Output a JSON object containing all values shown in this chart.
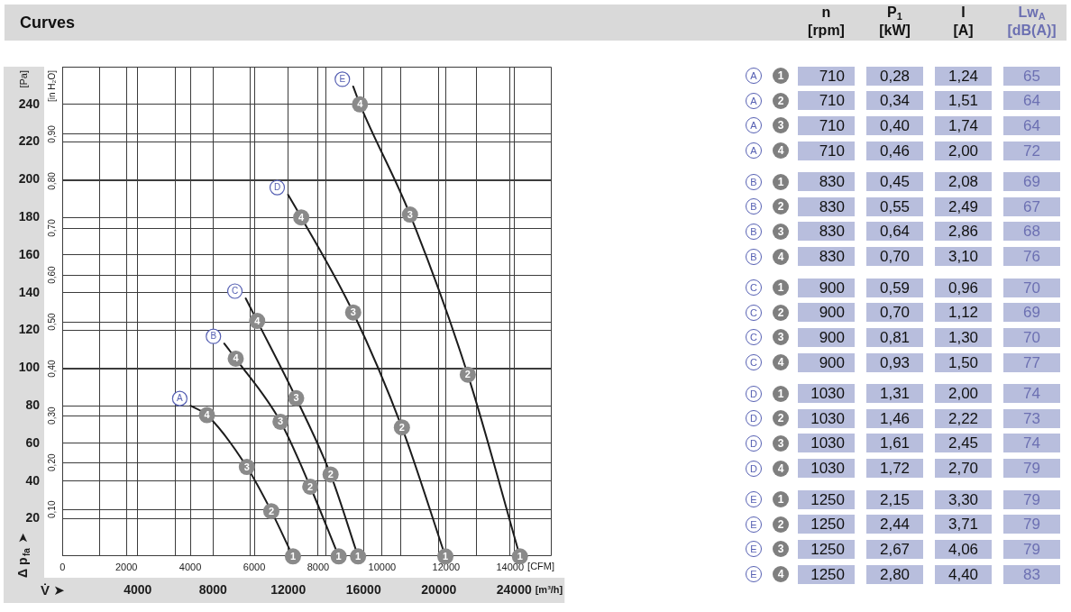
{
  "chart_data": [
    {
      "type": "line",
      "title": "Curves",
      "xlabel": "[m³/h]",
      "x2label": "[CFM]",
      "ylabel": "[Pa]",
      "y2label": "[in H₂O]",
      "xlim": [
        0,
        26000
      ],
      "xticks": [
        {
          "value": 2000,
          "label": null
        },
        4000,
        {
          "value": 6000,
          "label": null
        },
        8000,
        {
          "value": 10000,
          "label": null
        },
        12000,
        {
          "value": 14000,
          "label": null
        },
        16000,
        {
          "value": 18000,
          "label": null
        },
        20000,
        {
          "value": 22000,
          "label": null
        },
        24000
      ],
      "x2lim": [
        0,
        15303
      ],
      "x2ticks": [
        0,
        2000,
        4000,
        6000,
        8000,
        10000,
        12000,
        14000
      ],
      "ylim": [
        0,
        260
      ],
      "yticks": [
        20,
        40,
        60,
        80,
        100,
        120,
        140,
        160,
        180,
        200,
        220,
        240
      ],
      "y2lim": [
        0,
        1.044
      ],
      "y2ticks": [
        {
          "value": 0.1,
          "label": "0,10"
        },
        {
          "value": 0.2,
          "label": "0,20"
        },
        {
          "value": 0.3,
          "label": "0,30"
        },
        {
          "value": 0.4,
          "label": "0,40"
        },
        {
          "value": 0.5,
          "label": "0,50"
        },
        {
          "value": 0.6,
          "label": "0,60"
        },
        {
          "value": 0.7,
          "label": "0,70"
        },
        {
          "value": 0.8,
          "label": "0,80"
        },
        {
          "value": 0.9,
          "label": "0,90"
        }
      ],
      "grid": true,
      "line_style": "solid",
      "marker": "circle",
      "series": [
        {
          "name": "A",
          "color": "#1c1c1c",
          "x": [
            6810,
            7680,
            9800,
            11100,
            12250
          ],
          "values": [
            80,
            75,
            47.5,
            24,
            0
          ]
        },
        {
          "name": "B",
          "color": "#1c1c1c",
          "x": [
            8600,
            9210,
            11590,
            13170,
            14680
          ],
          "values": [
            113,
            105,
            71.5,
            37,
            0
          ]
        },
        {
          "name": "C",
          "color": "#1c1c1c",
          "x": [
            9740,
            10350,
            12420,
            14250,
            15710
          ],
          "values": [
            137,
            125,
            84,
            43.5,
            0
          ]
        },
        {
          "name": "D",
          "color": "#1c1c1c",
          "x": [
            11990,
            12690,
            15450,
            18040,
            20350
          ],
          "values": [
            192,
            180,
            129.5,
            68.5,
            0
          ]
        },
        {
          "name": "E",
          "color": "#1c1c1c",
          "x": [
            15450,
            15810,
            18470,
            21540,
            24310
          ],
          "values": [
            249.5,
            240,
            181.5,
            96.5,
            0
          ]
        }
      ],
      "annotations": [
        "Δ p$_{fa}$ ➤",
        "V̇ ➤",
        {
          "text": "4",
          "x": 7680,
          "y": 75
        },
        {
          "text": "3",
          "x": 9800,
          "y": 47.5
        },
        {
          "text": "2",
          "x": 11100,
          "y": 24
        },
        {
          "text": "1",
          "x": 12250,
          "y": 0
        },
        {
          "text": "4",
          "x": 9210,
          "y": 105
        },
        {
          "text": "3",
          "x": 11590,
          "y": 71.5
        },
        {
          "text": "2",
          "x": 13170,
          "y": 37
        },
        {
          "text": "1",
          "x": 14680,
          "y": 0
        },
        {
          "text": "4",
          "x": 10350,
          "y": 125
        },
        {
          "text": "3",
          "x": 12420,
          "y": 84
        },
        {
          "text": "2",
          "x": 14250,
          "y": 43.5
        },
        {
          "text": "1",
          "x": 15710,
          "y": 0
        },
        {
          "text": "4",
          "x": 12690,
          "y": 180
        },
        {
          "text": "3",
          "x": 15450,
          "y": 129.5
        },
        {
          "text": "2",
          "x": 18040,
          "y": 68.5
        },
        {
          "text": "1",
          "x": 20350,
          "y": 0
        },
        {
          "text": "4",
          "x": 15810,
          "y": 240
        },
        {
          "text": "3",
          "x": 18470,
          "y": 181.5
        },
        {
          "text": "2",
          "x": 21540,
          "y": 96.5
        },
        {
          "text": "1",
          "x": 24310,
          "y": 0
        }
      ]
    },
    {
      "type": "other",
      "categories": [
        "n\n[rpm]",
        "P$_{1}$\n[kW]",
        "I\n[A]",
        "Lw$_{A}$\n[dB(A)]"
      ],
      "y_categories": [
        "A",
        "A",
        "A",
        "A",
        "B",
        "B",
        "B",
        "B",
        "C",
        "C",
        "C",
        "C",
        "D",
        "D",
        "D",
        "D",
        "E",
        "E",
        "E",
        "E"
      ],
      "y2_categories": [
        "1",
        "2",
        "3",
        "4",
        "1",
        "2",
        "3",
        "4",
        "1",
        "2",
        "3",
        "4",
        "1",
        "2",
        "3",
        "4",
        "1",
        "2",
        "3",
        "4"
      ],
      "cell_labels": [
        [
          "710",
          "0,28",
          "1,24",
          "65"
        ],
        [
          "710",
          "0,34",
          "1,51",
          "64"
        ],
        [
          "710",
          "0,40",
          "1,74",
          "64"
        ],
        [
          "710",
          "0,46",
          "2,00",
          "72"
        ],
        [
          "830",
          "0,45",
          "2,08",
          "69"
        ],
        [
          "830",
          "0,55",
          "2,49",
          "67"
        ],
        [
          "830",
          "0,64",
          "2,86",
          "68"
        ],
        [
          "830",
          "0,70",
          "3,10",
          "76"
        ],
        [
          "900",
          "0,59",
          "0,96",
          "70"
        ],
        [
          "900",
          "0,70",
          "1,12",
          "69"
        ],
        [
          "900",
          "0,81",
          "1,30",
          "70"
        ],
        [
          "900",
          "0,93",
          "1,50",
          "77"
        ],
        [
          "1030",
          "1,31",
          "2,00",
          "74"
        ],
        [
          "1030",
          "1,46",
          "2,22",
          "73"
        ],
        [
          "1030",
          "1,61",
          "2,45",
          "74"
        ],
        [
          "1030",
          "1,72",
          "2,70",
          "79"
        ],
        [
          "1250",
          "2,15",
          "3,30",
          "79"
        ],
        [
          "1250",
          "2,44",
          "3,71",
          "79"
        ],
        [
          "1250",
          "2,67",
          "4,06",
          "79"
        ],
        [
          "1250",
          "2,80",
          "4,40",
          "83"
        ]
      ],
      "color": "#b8bedd",
      "colors": [
        "#111111",
        "#111111",
        "#111111",
        "#6c70b2"
      ]
    }
  ]
}
